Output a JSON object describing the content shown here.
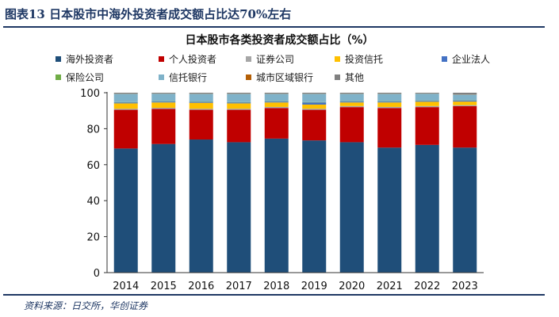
{
  "figure_title": "图表13  日本股市中海外投资者成交额占比达70%左右",
  "source": "资料来源：日交所，华创证券",
  "chart_data": {
    "type": "bar",
    "stacked": true,
    "title": "日本股市各类投资者成交额占比（%）",
    "xlabel": "",
    "ylabel": "",
    "ylim": [
      0,
      100
    ],
    "yticks": [
      0,
      20,
      40,
      60,
      80,
      100
    ],
    "categories": [
      "2014",
      "2015",
      "2016",
      "2017",
      "2018",
      "2019",
      "2020",
      "2021",
      "2022",
      "2023"
    ],
    "series": [
      {
        "name": "海外投资者",
        "color": "#1f4e79",
        "values": [
          69,
          71.5,
          74,
          72.5,
          74.5,
          73.5,
          72.5,
          69.5,
          71,
          69.5
        ]
      },
      {
        "name": "个人投资者",
        "color": "#c00000",
        "values": [
          21.5,
          19.5,
          16.5,
          18,
          17,
          17,
          19.5,
          22,
          21,
          23
        ]
      },
      {
        "name": "证券公司",
        "color": "#a6a6a6",
        "values": [
          0.6,
          0.6,
          0.6,
          0.6,
          0.6,
          0.6,
          0.6,
          0.6,
          0.6,
          0.6
        ]
      },
      {
        "name": "投资信托",
        "color": "#ffc000",
        "values": [
          3,
          3,
          3.3,
          3,
          2.5,
          2.3,
          2,
          2.5,
          2.4,
          2
        ]
      },
      {
        "name": "企业法人",
        "color": "#4472c4",
        "values": [
          0.5,
          0.5,
          0.5,
          0.5,
          0.5,
          1.2,
          0.5,
          0.5,
          0.5,
          0.6
        ]
      },
      {
        "name": "保险公司",
        "color": "#70ad47",
        "values": [
          0.2,
          0.2,
          0.2,
          0.2,
          0.2,
          0.2,
          0.2,
          0.2,
          0.2,
          0.2
        ]
      },
      {
        "name": "信托银行",
        "color": "#7fb2c9",
        "values": [
          4.6,
          4.2,
          4.3,
          4.6,
          4.1,
          4.6,
          4.1,
          4.1,
          3.8,
          3.1
        ]
      },
      {
        "name": "城市区域银行",
        "color": "#b45f06",
        "values": [
          0.1,
          0.1,
          0.1,
          0.1,
          0.1,
          0.1,
          0.1,
          0.1,
          0.1,
          0.1
        ]
      },
      {
        "name": "其他",
        "color": "#808080",
        "values": [
          0.5,
          0.4,
          0.5,
          0.5,
          0.5,
          0.5,
          0.5,
          0.5,
          0.4,
          0.9
        ]
      }
    ]
  }
}
